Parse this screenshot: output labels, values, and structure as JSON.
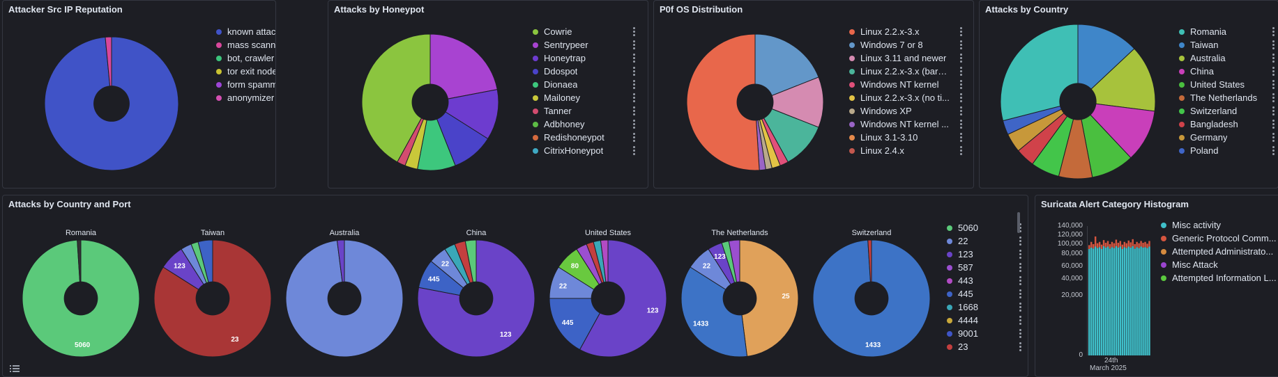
{
  "panels": {
    "reputation": {
      "title": "Attacker Src IP Reputation",
      "legend": [
        {
          "label": "known attacker",
          "color": "#4053c7"
        },
        {
          "label": "mass scanner",
          "color": "#d8479b"
        },
        {
          "label": "bot, crawler",
          "color": "#3cc47c"
        },
        {
          "label": "tor exit node",
          "color": "#c8c232"
        },
        {
          "label": "form spammer",
          "color": "#9d45d6"
        },
        {
          "label": "anonymizer",
          "color": "#d34fb1"
        }
      ],
      "slices": [
        {
          "label": "known attacker",
          "value": 98.5,
          "color": "#4053c7"
        },
        {
          "label": "mass scanner",
          "value": 1.5,
          "color": "#d8479b"
        }
      ]
    },
    "honeypot": {
      "title": "Attacks by Honeypot",
      "legend": [
        {
          "label": "Cowrie",
          "color": "#8bc53f"
        },
        {
          "label": "Sentrypeer",
          "color": "#a843d1"
        },
        {
          "label": "Honeytrap",
          "color": "#6d3ccf"
        },
        {
          "label": "Ddospot",
          "color": "#4a43c9"
        },
        {
          "label": "Dionaea",
          "color": "#3dc77d"
        },
        {
          "label": "Mailoney",
          "color": "#c9c83a"
        },
        {
          "label": "Tanner",
          "color": "#d34c6f"
        },
        {
          "label": "Adbhoney",
          "color": "#5dbb45"
        },
        {
          "label": "Redishoneypot",
          "color": "#d56a3e"
        },
        {
          "label": "CitrixHoneypot",
          "color": "#3fa9c3"
        }
      ],
      "slices": [
        {
          "label": "Sentrypeer",
          "value": 22,
          "color": "#a843d1"
        },
        {
          "label": "Honeytrap",
          "value": 12,
          "color": "#6d3ccf"
        },
        {
          "label": "Ddospot",
          "value": 10,
          "color": "#4a43c9"
        },
        {
          "label": "Dionaea",
          "value": 9,
          "color": "#3dc77d"
        },
        {
          "label": "Mailoney",
          "value": 3,
          "color": "#c9c83a"
        },
        {
          "label": "Tanner",
          "value": 2,
          "color": "#d34c6f"
        },
        {
          "label": "Cowrie",
          "value": 42,
          "color": "#8bc53f"
        }
      ]
    },
    "p0f": {
      "title": "P0f OS Distribution",
      "legend": [
        {
          "label": "Linux 2.2.x-3.x",
          "color": "#e8674b"
        },
        {
          "label": "Windows 7 or 8",
          "color": "#6397c9"
        },
        {
          "label": "Linux 3.11 and newer",
          "color": "#d58bb1"
        },
        {
          "label": "Linux 2.2.x-3.x (bare...",
          "color": "#4bb59b"
        },
        {
          "label": "Windows NT kernel",
          "color": "#e1507a"
        },
        {
          "label": "Linux 2.2.x-3.x (no ti...",
          "color": "#e3c345"
        },
        {
          "label": "Windows XP",
          "color": "#b9a98b"
        },
        {
          "label": "Windows NT kernel ...",
          "color": "#9a64c6"
        },
        {
          "label": "Linux 3.1-3.10",
          "color": "#e68a4b"
        },
        {
          "label": "Linux 2.4.x",
          "color": "#c4584e"
        }
      ],
      "slices": [
        {
          "label": "Windows 7 or 8",
          "value": 19,
          "color": "#6397c9"
        },
        {
          "label": "Linux 3.11 and newer",
          "value": 12,
          "color": "#d58bb1"
        },
        {
          "label": "Linux 2.2.x-3.x (bare...",
          "value": 11,
          "color": "#4bb59b"
        },
        {
          "label": "Windows NT kernel",
          "value": 2,
          "color": "#e1507a"
        },
        {
          "label": "Linux 2.2.x-3.x (no ti...",
          "value": 2,
          "color": "#e3c345"
        },
        {
          "label": "Windows XP",
          "value": 1.5,
          "color": "#b9a98b"
        },
        {
          "label": "Windows NT kernel ...",
          "value": 1.5,
          "color": "#9a64c6"
        },
        {
          "label": "Linux 2.2.x-3.x",
          "value": 51,
          "color": "#e8674b"
        }
      ]
    },
    "country": {
      "title": "Attacks by Country",
      "legend": [
        {
          "label": "Romania",
          "color": "#3fbfb5"
        },
        {
          "label": "Taiwan",
          "color": "#3f86c9"
        },
        {
          "label": "Australia",
          "color": "#a7c23c"
        },
        {
          "label": "China",
          "color": "#c93fba"
        },
        {
          "label": "United States",
          "color": "#4abf3f"
        },
        {
          "label": "The Netherlands",
          "color": "#c46a3a"
        },
        {
          "label": "Switzerland",
          "color": "#43c54a"
        },
        {
          "label": "Bangladesh",
          "color": "#d0424a"
        },
        {
          "label": "Germany",
          "color": "#c7983a"
        },
        {
          "label": "Poland",
          "color": "#3f65c7"
        }
      ],
      "slices": [
        {
          "label": "Taiwan",
          "value": 13,
          "color": "#3f86c9"
        },
        {
          "label": "Australia",
          "value": 14,
          "color": "#a7c23c"
        },
        {
          "label": "China",
          "value": 11,
          "color": "#c93fba"
        },
        {
          "label": "United States",
          "value": 9,
          "color": "#4abf3f"
        },
        {
          "label": "The Netherlands",
          "value": 7,
          "color": "#c46a3a"
        },
        {
          "label": "Switzerland",
          "value": 6,
          "color": "#43c54a"
        },
        {
          "label": "Bangladesh",
          "value": 4,
          "color": "#d0424a"
        },
        {
          "label": "Germany",
          "value": 4,
          "color": "#c7983a"
        },
        {
          "label": "Poland",
          "value": 3,
          "color": "#3f65c7"
        },
        {
          "label": "Romania",
          "value": 29,
          "color": "#3fbfb5"
        }
      ]
    },
    "country_port": {
      "title": "Attacks by Country and Port",
      "legend": [
        {
          "label": "5060",
          "color": "#5bc97a"
        },
        {
          "label": "22",
          "color": "#6e88d9"
        },
        {
          "label": "123",
          "color": "#6a43c8"
        },
        {
          "label": "587",
          "color": "#9b4fd0"
        },
        {
          "label": "443",
          "color": "#b24bc4"
        },
        {
          "label": "445",
          "color": "#3d63c6"
        },
        {
          "label": "1668",
          "color": "#3aa7b7"
        },
        {
          "label": "4444",
          "color": "#c9a83a"
        },
        {
          "label": "9001",
          "color": "#3f55c7"
        },
        {
          "label": "23",
          "color": "#c43f3f"
        }
      ],
      "pies": [
        {
          "name": "Romania",
          "slices": [
            {
              "value": 99,
              "color": "#5bc97a",
              "label": "5060"
            },
            {
              "value": 1,
              "color": "#333",
              "label": ""
            }
          ],
          "labels": [
            {
              "text": "5060",
              "slice": 0
            }
          ]
        },
        {
          "name": "Taiwan",
          "slices": [
            {
              "value": 84,
              "color": "#a93636",
              "label": "23"
            },
            {
              "value": 7,
              "color": "#6a43c8",
              "label": "123"
            },
            {
              "value": 3,
              "color": "#6e88d9",
              "label": ""
            },
            {
              "value": 2,
              "color": "#5bc97a",
              "label": ""
            },
            {
              "value": 4,
              "color": "#3d63c6",
              "label": ""
            }
          ],
          "labels": [
            {
              "text": "23",
              "slice": 0
            },
            {
              "text": "123",
              "slice": 1
            }
          ]
        },
        {
          "name": "Australia",
          "slices": [
            {
              "value": 98,
              "color": "#6e88d9",
              "label": ""
            },
            {
              "value": 2,
              "color": "#6a43c8",
              "label": ""
            }
          ],
          "labels": []
        },
        {
          "name": "China",
          "slices": [
            {
              "value": 78,
              "color": "#6a43c8",
              "label": "123"
            },
            {
              "value": 8,
              "color": "#3d63c6",
              "label": "445"
            },
            {
              "value": 5,
              "color": "#6e88d9",
              "label": "22"
            },
            {
              "value": 3,
              "color": "#3aa7b7",
              "label": ""
            },
            {
              "value": 3,
              "color": "#c43f3f",
              "label": ""
            },
            {
              "value": 3,
              "color": "#5bc97a",
              "label": ""
            }
          ],
          "labels": [
            {
              "text": "123",
              "slice": 0
            },
            {
              "text": "445",
              "slice": 1
            },
            {
              "text": "22",
              "slice": 2
            }
          ]
        },
        {
          "name": "United States",
          "slices": [
            {
              "value": 58,
              "color": "#6a43c8",
              "label": "123"
            },
            {
              "value": 17,
              "color": "#3d63c6",
              "label": "445"
            },
            {
              "value": 9,
              "color": "#6e88d9",
              "label": "22"
            },
            {
              "value": 7,
              "color": "#69c93f",
              "label": "80"
            },
            {
              "value": 3,
              "color": "#9b4fd0",
              "label": ""
            },
            {
              "value": 2,
              "color": "#c43f3f",
              "label": ""
            },
            {
              "value": 2,
              "color": "#3aa7b7",
              "label": ""
            },
            {
              "value": 2,
              "color": "#b24bc4",
              "label": ""
            }
          ],
          "labels": [
            {
              "text": "123",
              "slice": 0
            },
            {
              "text": "445",
              "slice": 1
            },
            {
              "text": "22",
              "slice": 2
            },
            {
              "text": "80",
              "slice": 3
            }
          ]
        },
        {
          "name": "The Netherlands",
          "slices": [
            {
              "value": 48,
              "color": "#e0a15a",
              "label": "25"
            },
            {
              "value": 36,
              "color": "#3d73c6",
              "label": "1433"
            },
            {
              "value": 7,
              "color": "#6e88d9",
              "label": "22"
            },
            {
              "value": 4,
              "color": "#6a43c8",
              "label": "123"
            },
            {
              "value": 2,
              "color": "#5bc97a",
              "label": ""
            },
            {
              "value": 3,
              "color": "#9b4fd0",
              "label": ""
            }
          ],
          "labels": [
            {
              "text": "25",
              "slice": 0
            },
            {
              "text": "1433",
              "slice": 1
            },
            {
              "text": "22",
              "slice": 2
            },
            {
              "text": "123",
              "slice": 3
            }
          ]
        },
        {
          "name": "Switzerland",
          "slices": [
            {
              "value": 99,
              "color": "#3d73c6",
              "label": "1433"
            },
            {
              "value": 1,
              "color": "#c43f3f",
              "label": ""
            }
          ],
          "labels": [
            {
              "text": "1433",
              "slice": 0
            }
          ]
        }
      ]
    },
    "suricata": {
      "title": "Suricata Alert Category Histogram",
      "legend": [
        {
          "label": "Misc activity",
          "color": "#3fbfc9"
        },
        {
          "label": "Generic Protocol Comm...",
          "color": "#d5553f"
        },
        {
          "label": "Attempted Administrato...",
          "color": "#d58b3f"
        },
        {
          "label": "Misc Attack",
          "color": "#9b45d0"
        },
        {
          "label": "Attempted Information L...",
          "color": "#5bc93f"
        }
      ],
      "y_ticks": [
        "140,000",
        "120,000",
        "100,000",
        "80,000",
        "60,000",
        "40,000",
        "20,000",
        "0"
      ],
      "x_label_day": "24th",
      "x_label_month": "March 2025"
    }
  },
  "chart_data": {
    "type": "bar",
    "title": "Suricata Alert Category Histogram",
    "xlabel": "March 2025",
    "ylabel": "",
    "ylim": [
      0,
      140000
    ],
    "series": [
      {
        "name": "Misc activity",
        "values": [
          90000,
          93000,
          91000,
          95000,
          92000,
          94000,
          90000,
          96000,
          93000,
          95000,
          91000,
          94000,
          92000,
          96000,
          93000,
          95000,
          90000,
          94000,
          92000,
          95000,
          93000,
          96000,
          91000,
          94000,
          92000,
          95000,
          93000,
          94000,
          92000,
          95000
        ]
      },
      {
        "name": "Generic Protocol Comm...",
        "values": [
          8000,
          12000,
          9000,
          22000,
          10000,
          11000,
          9000,
          13000,
          10000,
          12000,
          9000,
          11000,
          10000,
          14000,
          10000,
          12000,
          9000,
          11000,
          10000,
          13000,
          11000,
          15000,
          9000,
          11000,
          10000,
          12000,
          10000,
          11000,
          9000,
          12000
        ]
      }
    ]
  }
}
